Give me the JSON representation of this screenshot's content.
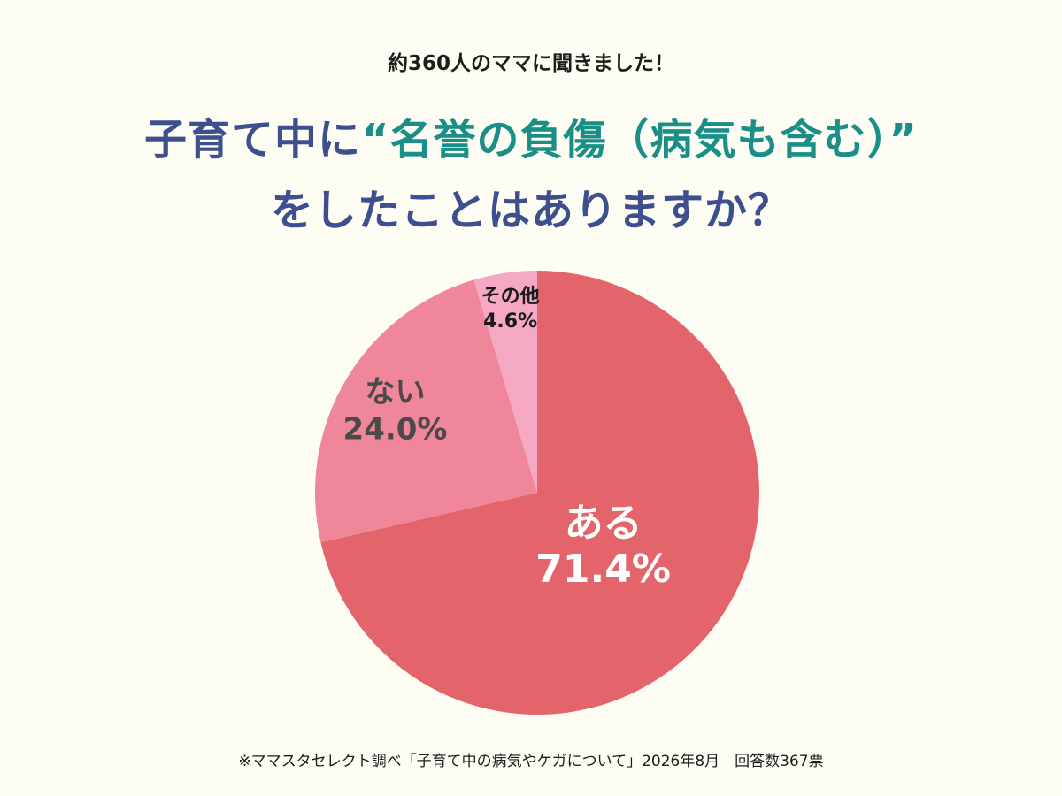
{
  "header": {
    "subtitle": "約360人のママに聞きました！",
    "title_line1_part1": "子育て中に",
    "title_line1_highlight": "“名誉の負傷（病気も含む）”",
    "title_line2": "をしたことはありますか？"
  },
  "colors": {
    "background": "#fdfdf3",
    "title_navy": "#3d4f8f",
    "title_teal": "#1a8f87"
  },
  "chart_data": {
    "type": "pie",
    "categories": [
      "ある",
      "ない",
      "その他"
    ],
    "values": [
      71.4,
      24.0,
      4.6
    ],
    "value_labels": [
      "71.4%",
      "24.0%",
      "4.6%"
    ],
    "colors": [
      "#e3646a",
      "#f0869a",
      "#f4a8c4"
    ],
    "label_colors": [
      "#ffffff",
      "#4a4a4a",
      "#1a1a1a"
    ]
  },
  "footer": {
    "note": "※ママスタセレクト調べ「子育て中の病気やケガについて」2026年8月　回答数367票"
  }
}
